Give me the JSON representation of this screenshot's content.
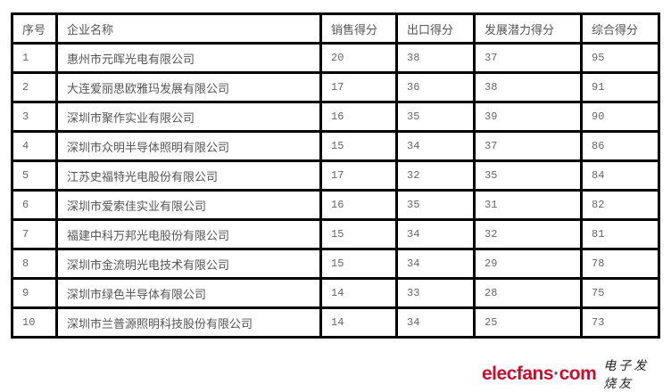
{
  "table": {
    "headers": [
      "序号",
      "企业名称",
      "销售得分",
      "出口得分",
      "发展潜力得分",
      "综合得分"
    ],
    "rows": [
      [
        "1",
        "惠州市元晖光电有限公司",
        "20",
        "38",
        "37",
        "95"
      ],
      [
        "2",
        "大连爱丽思欧雅玛发展有限公司",
        "17",
        "36",
        "38",
        "91"
      ],
      [
        "3",
        "深圳市聚作实业有限公司",
        "16",
        "35",
        "39",
        "90"
      ],
      [
        "4",
        "深圳市众明半导体照明有限公司",
        "15",
        "34",
        "37",
        "86"
      ],
      [
        "5",
        "江苏史福特光电股份有限公司",
        "17",
        "32",
        "35",
        "84"
      ],
      [
        "6",
        "深圳市爱索佳实业有限公司",
        "16",
        "35",
        "31",
        "82"
      ],
      [
        "7",
        "福建中科万邦光电股份有限公司",
        "15",
        "34",
        "32",
        "81"
      ],
      [
        "8",
        "深圳市金流明光电技术有限公司",
        "15",
        "34",
        "29",
        "78"
      ],
      [
        "9",
        "深圳市绿色半导体有限公司",
        "14",
        "33",
        "28",
        "75"
      ],
      [
        "10",
        "深圳市兰普源照明科技股份有限公司",
        "14",
        "34",
        "25",
        "73"
      ]
    ]
  },
  "watermark": {
    "logo_left": "elecfans",
    "logo_sep": "·",
    "logo_right": "com",
    "chinese": "电子发烧友",
    "brand_color": "#c8102e"
  }
}
